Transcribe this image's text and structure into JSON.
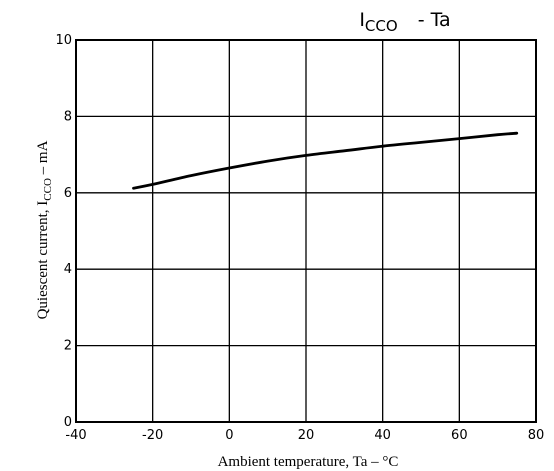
{
  "chart_data": {
    "type": "line",
    "title": "I",
    "title_sub": "CCO",
    "title_rest": "-  Ta",
    "xlabel": "Ambient temperature, Ta – °C",
    "ylabel_main": "Quiescent current, I",
    "ylabel_sub": "CCO",
    "ylabel_rest": " – mA",
    "xlim": [
      -40,
      80
    ],
    "ylim": [
      0,
      10
    ],
    "xticks": [
      -40,
      -20,
      0,
      20,
      40,
      60,
      80
    ],
    "yticks": [
      0,
      2,
      4,
      6,
      8,
      10
    ],
    "grid": true,
    "series": [
      {
        "x": [
          -25,
          -20,
          -10,
          0,
          10,
          20,
          30,
          40,
          50,
          60,
          70,
          75
        ],
        "y": [
          6.12,
          6.22,
          6.45,
          6.65,
          6.83,
          6.98,
          7.1,
          7.22,
          7.32,
          7.42,
          7.52,
          7.56
        ]
      }
    ]
  }
}
